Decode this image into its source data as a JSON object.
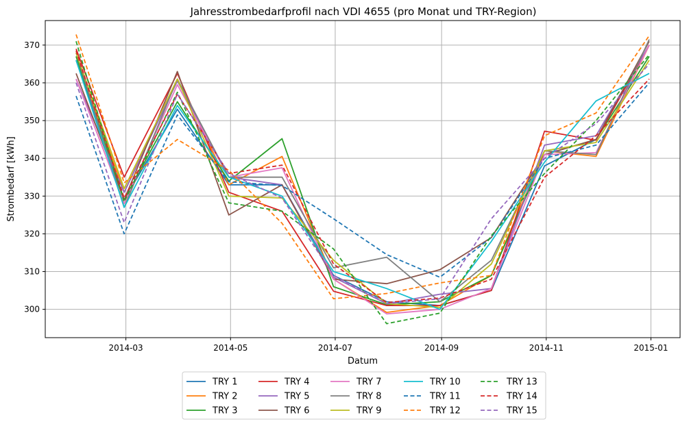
{
  "chart_data": {
    "type": "line",
    "title": "Jahresstrombedarfprofil nach VDI 4655 (pro Monat und TRY-Region)",
    "xlabel": "Datum",
    "ylabel": "Strombedarf [kWh]",
    "x": [
      "2014-01-31",
      "2014-02-28",
      "2014-03-31",
      "2014-04-30",
      "2014-05-31",
      "2014-06-30",
      "2014-07-31",
      "2014-08-31",
      "2014-09-30",
      "2014-10-31",
      "2014-11-30",
      "2014-12-31"
    ],
    "x_ticks": [
      "2014-03",
      "2014-05",
      "2014-07",
      "2014-09",
      "2014-11",
      "2015-01"
    ],
    "x_tick_dates": [
      "2014-03-01",
      "2014-05-01",
      "2014-07-01",
      "2014-09-01",
      "2014-11-01",
      "2015-01-01"
    ],
    "xlim": [
      "2014-01-13",
      "2015-01-18"
    ],
    "ylim": [
      292.5,
      376.5
    ],
    "y_ticks": [
      300,
      310,
      320,
      330,
      340,
      350,
      360,
      370
    ],
    "grid": true,
    "legend_position": "bottom-center, outside",
    "series": [
      {
        "name": "TRY 1",
        "color": "#1f77b4",
        "dash": "solid",
        "values": [
          366,
          329,
          353,
          333,
          333,
          309,
          302,
          301,
          305,
          338,
          345,
          370
        ]
      },
      {
        "name": "TRY 2",
        "color": "#ff7f0e",
        "dash": "solid",
        "values": [
          367,
          331,
          361,
          333,
          340.5,
          308,
          299.2,
          301,
          309,
          342,
          340.5,
          370
        ]
      },
      {
        "name": "TRY 3",
        "color": "#2ca02c",
        "dash": "solid",
        "values": [
          367,
          329,
          355,
          334,
          345.2,
          306,
          301.2,
          302,
          309,
          341,
          345,
          367
        ]
      },
      {
        "name": "TRY 4",
        "color": "#d62728",
        "dash": "solid",
        "values": [
          369,
          335,
          362.5,
          331,
          326,
          304.8,
          301,
          301,
          305,
          347.2,
          344.8,
          370
        ]
      },
      {
        "name": "TRY 5",
        "color": "#9467bd",
        "dash": "solid",
        "values": [
          361,
          331,
          360.5,
          335,
          333,
          308.5,
          301.5,
          304,
          305.5,
          343.5,
          346,
          370
        ]
      },
      {
        "name": "TRY 6",
        "color": "#8c564b",
        "dash": "solid",
        "values": [
          362.5,
          329,
          363,
          325,
          333,
          308,
          306.8,
          310.5,
          319,
          341,
          345,
          371
        ]
      },
      {
        "name": "TRY 7",
        "color": "#e377c2",
        "dash": "solid",
        "values": [
          361,
          328,
          359.5,
          335,
          337.5,
          308,
          298.8,
          300,
          305.5,
          341,
          341.5,
          370
        ]
      },
      {
        "name": "TRY 8",
        "color": "#7f7f7f",
        "dash": "solid",
        "values": [
          368,
          327,
          361,
          335,
          335,
          311,
          313.8,
          302,
          313,
          342,
          341,
          371.5
        ]
      },
      {
        "name": "TRY 9",
        "color": "#bcbd22",
        "dash": "solid",
        "values": [
          368,
          332,
          361,
          330,
          329.5,
          313,
          301.5,
          300.5,
          312,
          342,
          344.2,
          366
        ]
      },
      {
        "name": "TRY 10",
        "color": "#17becf",
        "dash": "solid",
        "values": [
          366,
          327,
          354,
          335,
          330,
          310,
          305.5,
          300,
          318,
          339,
          355.2,
          362.5
        ]
      },
      {
        "name": "TRY 11",
        "color": "#1f77b4",
        "dash": "dashed",
        "values": [
          356.5,
          320,
          351.5,
          333.8,
          332.8,
          324,
          314.5,
          308.5,
          319,
          340,
          343.5,
          360
        ]
      },
      {
        "name": "TRY 12",
        "color": "#ff7f0e",
        "dash": "dashed",
        "values": [
          372.8,
          333.5,
          345,
          336.8,
          322.8,
          302.8,
          304.2,
          307,
          309,
          346,
          352,
          372.5
        ]
      },
      {
        "name": "TRY 13",
        "color": "#2ca02c",
        "dash": "dashed",
        "values": [
          371,
          328.5,
          357.5,
          328.2,
          326,
          316,
          296.2,
          299,
          319.5,
          336,
          350,
          367.5
        ]
      },
      {
        "name": "TRY 14",
        "color": "#d62728",
        "dash": "dashed",
        "values": [
          368.5,
          329.5,
          357,
          336,
          338.2,
          312,
          301.8,
          303,
          308,
          335,
          346,
          361
        ]
      },
      {
        "name": "TRY 15",
        "color": "#9467bd",
        "dash": "dashed",
        "values": [
          360,
          323,
          357,
          336,
          329.5,
          309,
          301.5,
          302.8,
          324,
          340,
          349.2,
          365
        ]
      }
    ]
  }
}
